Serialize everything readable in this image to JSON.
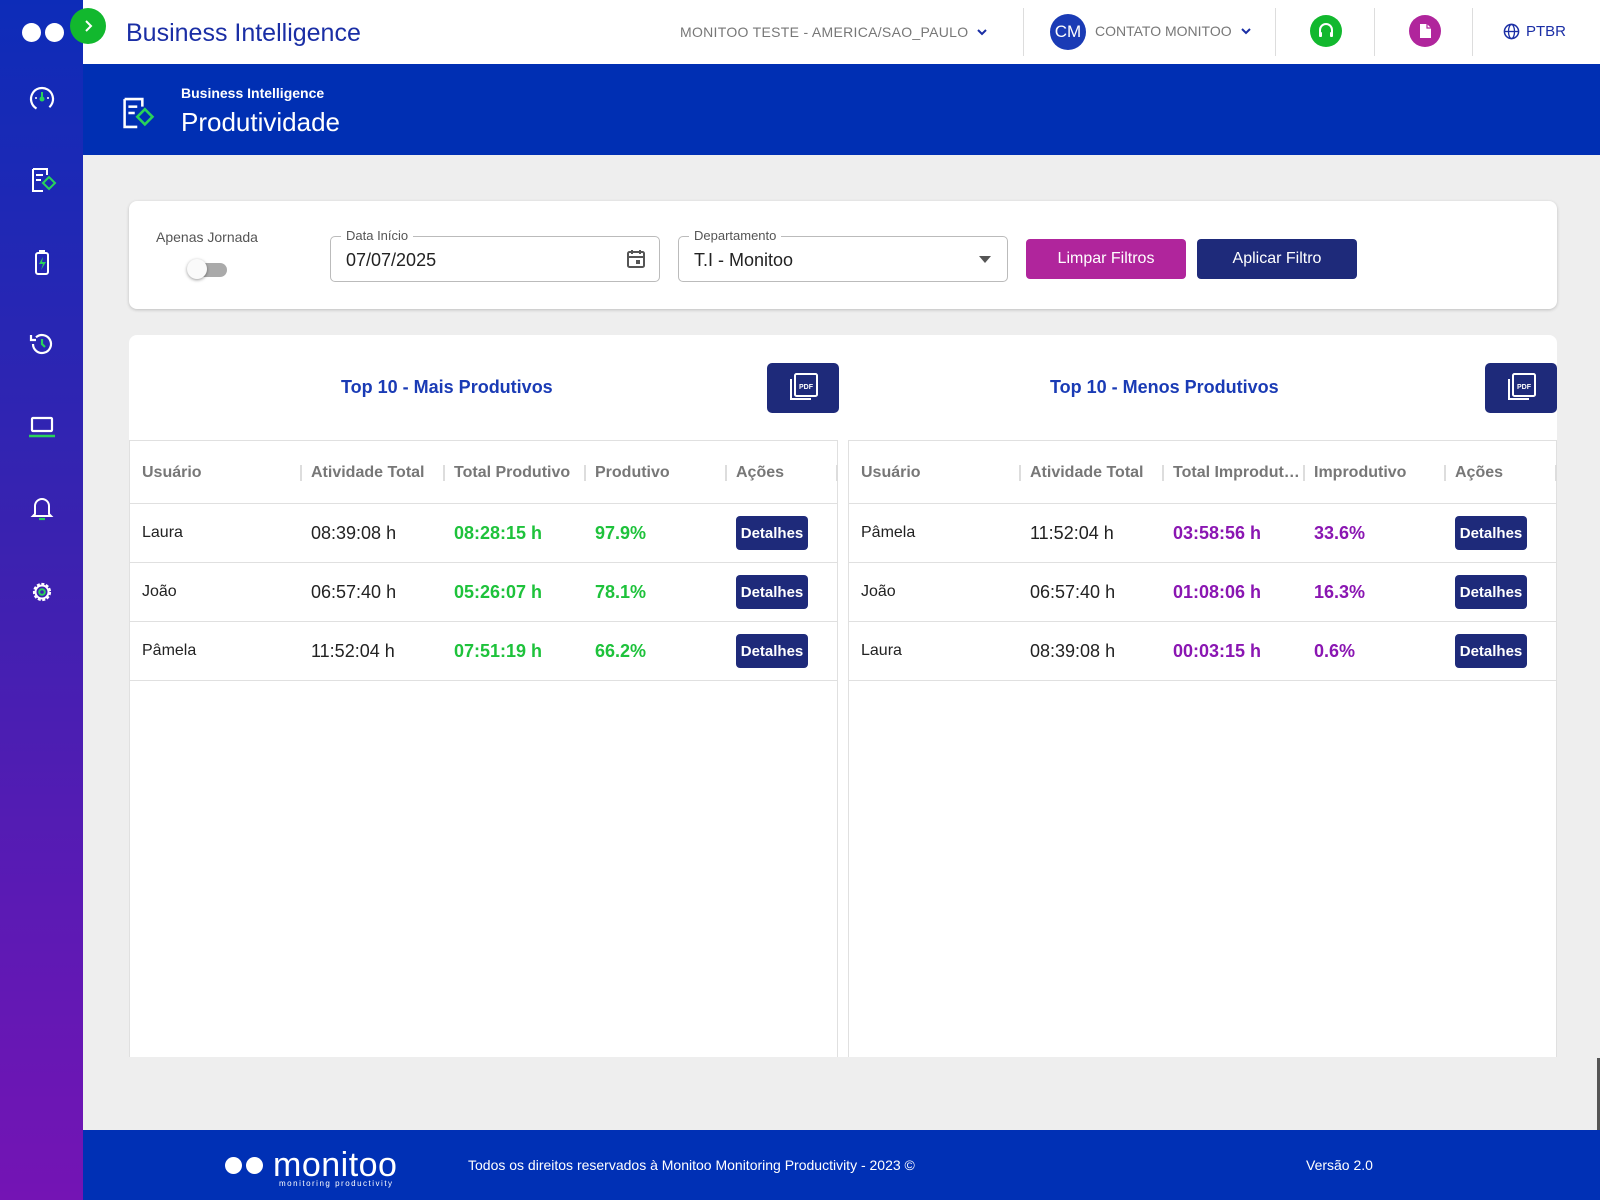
{
  "header": {
    "app_title": "Business Intelligence",
    "org_select": "MONITOO TESTE - AMERICA/SAO_PAULO",
    "avatar_initials": "CM",
    "user_select": "CONTATO MONITOO",
    "language": "PTBR"
  },
  "sidebar": {
    "items": [
      {
        "icon": "speedometer-icon"
      },
      {
        "icon": "report-icon"
      },
      {
        "icon": "battery-icon"
      },
      {
        "icon": "history-icon"
      },
      {
        "icon": "laptop-icon"
      },
      {
        "icon": "bell-icon"
      },
      {
        "icon": "gear-icon"
      }
    ]
  },
  "banner": {
    "subtitle": "Business Intelligence",
    "title": "Produtividade"
  },
  "filters": {
    "toggle_label": "Apenas Jornada",
    "toggle_on": false,
    "date_label": "Data Início",
    "date_value": "07/07/2025",
    "dept_label": "Departamento",
    "dept_value": "T.I - Monitoo",
    "clear_label": "Limpar Filtros",
    "apply_label": "Aplicar Filtro"
  },
  "top_productive": {
    "title": "Top 10 - Mais Produtivos",
    "columns": [
      "Usuário",
      "Atividade Total",
      "Total Produtivo",
      "Produtivo",
      "Ações"
    ],
    "rows": [
      {
        "user": "Laura",
        "activity": "08:39:08 h",
        "total": "08:28:15 h",
        "percent": "97.9%",
        "action": "Detalhes"
      },
      {
        "user": "João",
        "activity": "06:57:40 h",
        "total": "05:26:07 h",
        "percent": "78.1%",
        "action": "Detalhes"
      },
      {
        "user": "Pâmela",
        "activity": "11:52:04 h",
        "total": "07:51:19 h",
        "percent": "66.2%",
        "action": "Detalhes"
      }
    ]
  },
  "top_unproductive": {
    "title": "Top 10 - Menos Produtivos",
    "columns": [
      "Usuário",
      "Atividade Total",
      "Total Improdut…",
      "Improdutivo",
      "Ações"
    ],
    "rows": [
      {
        "user": "Pâmela",
        "activity": "11:52:04 h",
        "total": "03:58:56 h",
        "percent": "33.6%",
        "action": "Detalhes"
      },
      {
        "user": "João",
        "activity": "06:57:40 h",
        "total": "01:08:06 h",
        "percent": "16.3%",
        "action": "Detalhes"
      },
      {
        "user": "Laura",
        "activity": "08:39:08 h",
        "total": "00:03:15 h",
        "percent": "0.6%",
        "action": "Detalhes"
      }
    ]
  },
  "footer": {
    "brand": "monitoo",
    "tagline": "monitoring productivity",
    "copyright": "Todos os direitos reservados à Monitoo Monitoring Productivity - 2023 ©",
    "version": "Versão 2.0"
  },
  "colors": {
    "primary_blue": "#002fb3",
    "navy_button": "#1e2a7a",
    "magenta_button": "#b0259c",
    "productive_green": "#1ec23b",
    "unproductive_purple": "#8a16b2"
  }
}
